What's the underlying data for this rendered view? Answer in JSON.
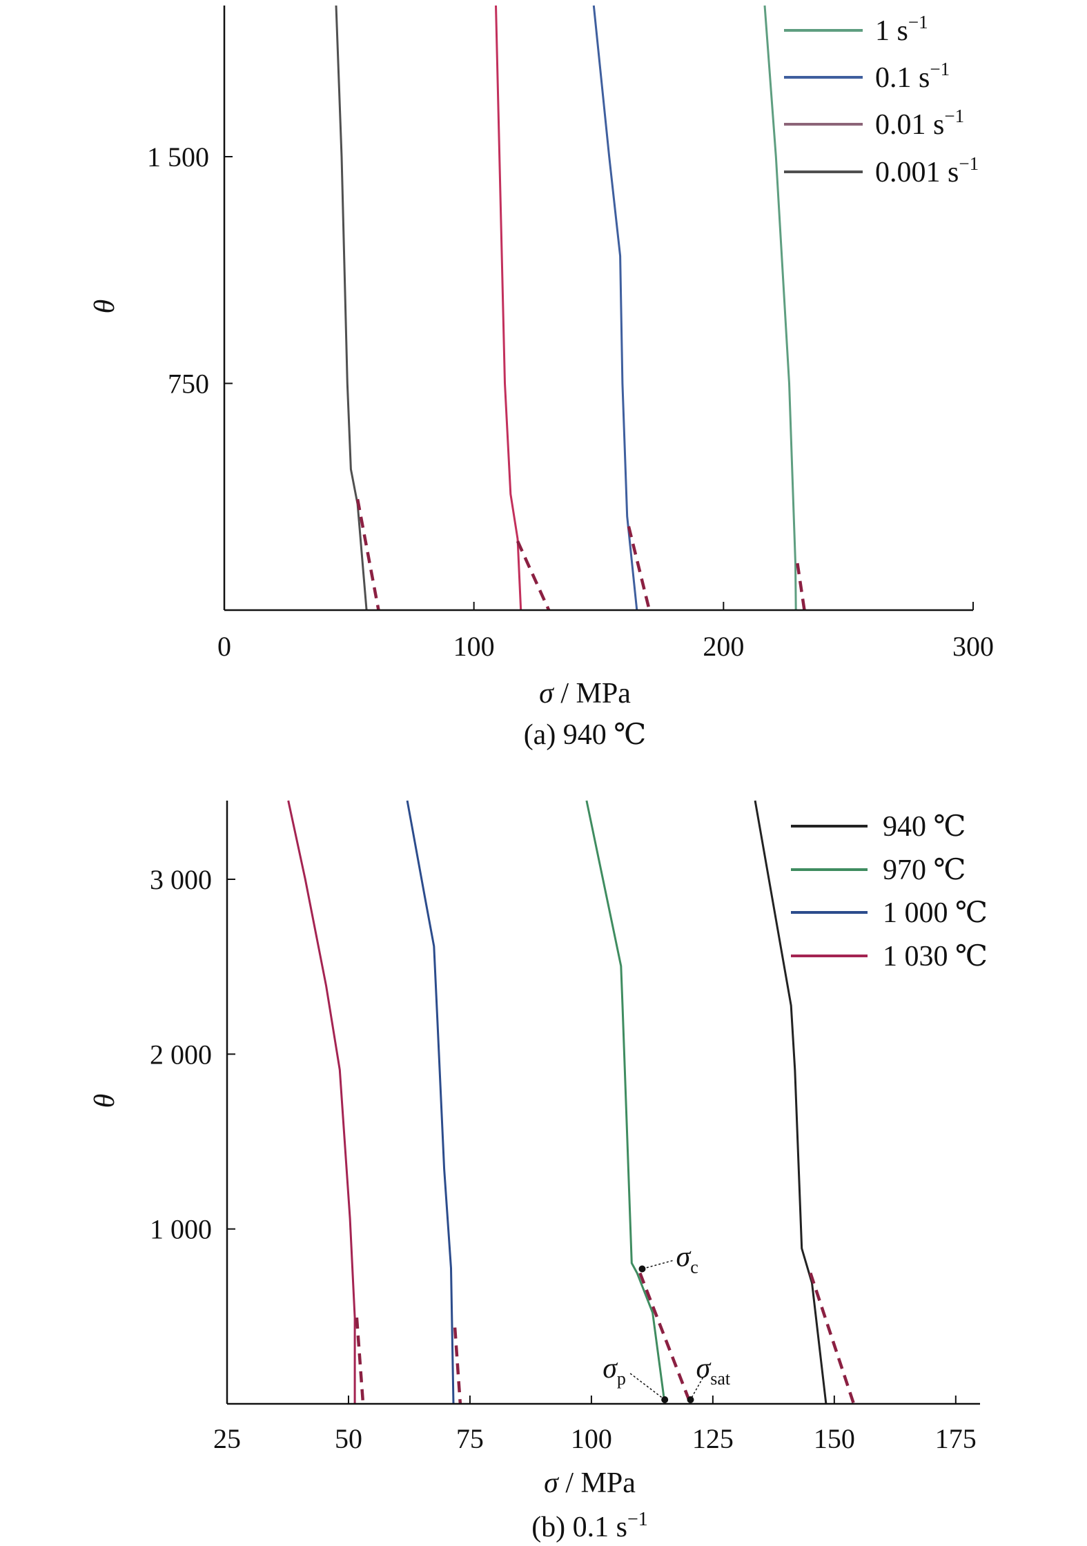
{
  "chart_data": [
    {
      "type": "line",
      "caption": "(a) 940 ℃",
      "xlabel_sym": "σ",
      "xlabel_unit": " / MPa",
      "ylabel": "θ",
      "xlim": [
        0,
        300
      ],
      "ylim": [
        0,
        2000
      ],
      "xticks": [
        0,
        100,
        200,
        300
      ],
      "xtick_labels": [
        "0",
        "100",
        "200",
        "300"
      ],
      "yticks": [
        750,
        1500
      ],
      "ytick_labels": [
        "750",
        "1 500"
      ],
      "grid": false,
      "legend_position": "top-right",
      "series": [
        {
          "name": "1 s",
          "sup": "−1",
          "color": "#5e9e80",
          "points": [
            [
              216.5,
              2000
            ],
            [
              221,
              1500
            ],
            [
              226.3,
              750
            ],
            [
              228.8,
              155
            ],
            [
              229,
              0
            ]
          ],
          "fit": [
            [
              229.6,
              155
            ],
            [
              232.4,
              0
            ]
          ]
        },
        {
          "name": "0.1 s",
          "sup": "−1",
          "color": "#3f5f9e",
          "points": [
            [
              148,
              2000
            ],
            [
              154.2,
              1500
            ],
            [
              158.6,
              1172
            ],
            [
              159.5,
              750
            ],
            [
              161.4,
              310
            ],
            [
              165.3,
              0
            ]
          ],
          "fit": [
            [
              162,
              277
            ],
            [
              170.3,
              0
            ]
          ]
        },
        {
          "name": "0.01 s",
          "sup": "−1",
          "color": "#8c6478",
          "line_color": "#c2305c",
          "points": [
            [
              108.8,
              2000
            ],
            [
              112.4,
              750
            ],
            [
              114.7,
              384
            ],
            [
              117.5,
              236
            ],
            [
              118.8,
              0
            ]
          ],
          "fit": [
            [
              117.5,
              228
            ],
            [
              130,
              0
            ]
          ]
        },
        {
          "name": "0.001 s",
          "sup": "−1",
          "color": "#505050",
          "points": [
            [
              44.8,
              2000
            ],
            [
              47,
              1500
            ],
            [
              49.3,
              750
            ],
            [
              50.7,
              466
            ],
            [
              53.4,
              351
            ],
            [
              57,
              0
            ]
          ],
          "fit": [
            [
              53.4,
              367
            ],
            [
              61.8,
              0
            ]
          ]
        }
      ]
    },
    {
      "type": "line",
      "caption": "(b) 0.1 s",
      "caption_sup": "−1",
      "xlabel_sym": "σ",
      "xlabel_unit": " / MPa",
      "ylabel": "θ",
      "xlim": [
        25,
        180
      ],
      "ylim": [
        0,
        3450
      ],
      "xticks": [
        25,
        50,
        75,
        100,
        125,
        150,
        175
      ],
      "xtick_labels": [
        "25",
        "50",
        "75",
        "100",
        "125",
        "150",
        "175"
      ],
      "yticks": [
        1000,
        2000,
        3000
      ],
      "ytick_labels": [
        "1 000",
        "2 000",
        "3 000"
      ],
      "grid": false,
      "legend_position": "top-right",
      "series": [
        {
          "name": "940 ℃",
          "color": "#222222",
          "points": [
            [
              133.7,
              3450
            ],
            [
              141.1,
              2278
            ],
            [
              141.9,
              1910
            ],
            [
              143.3,
              889
            ],
            [
              145.4,
              691
            ],
            [
              148.3,
              0
            ]
          ],
          "fit": [
            [
              145.1,
              748
            ],
            [
              154,
              0
            ]
          ]
        },
        {
          "name": "970 ℃",
          "color": "#3f8c60",
          "points": [
            [
              99,
              3450
            ],
            [
              106.1,
              2504
            ],
            [
              106.4,
              2278
            ],
            [
              108.3,
              805
            ],
            [
              109.4,
              748
            ],
            [
              112.6,
              521
            ],
            [
              115.1,
              0
            ]
          ],
          "fit": [
            [
              110,
              748
            ],
            [
              120.4,
              0
            ]
          ]
        },
        {
          "name": "1 000 ℃",
          "color": "#2c4c8c",
          "points": [
            [
              62.1,
              3450
            ],
            [
              65.7,
              2900
            ],
            [
              67.6,
              2617
            ],
            [
              68.3,
              2193
            ],
            [
              69.7,
              1343
            ],
            [
              71.1,
              776
            ],
            [
              71.6,
              0
            ]
          ],
          "fit": [
            [
              71.9,
              436
            ],
            [
              73,
              0
            ]
          ]
        },
        {
          "name": "1 030 ℃",
          "color": "#a42452",
          "points": [
            [
              37.6,
              3450
            ],
            [
              41.1,
              3000
            ],
            [
              45.4,
              2390
            ],
            [
              48.2,
              1910
            ],
            [
              50.3,
              1060
            ],
            [
              51.3,
              493
            ],
            [
              51.3,
              0
            ]
          ],
          "fit": [
            [
              51.7,
              493
            ],
            [
              53,
              0
            ]
          ]
        }
      ],
      "annotations": [
        {
          "sym": "σ",
          "sub": "c",
          "at": [
            109.6,
            748
          ]
        },
        {
          "sym": "σ",
          "sub": "p",
          "at": [
            115.1,
            0
          ]
        },
        {
          "sym": "σ",
          "sub": "sat",
          "at": [
            120.4,
            0
          ]
        }
      ]
    }
  ]
}
